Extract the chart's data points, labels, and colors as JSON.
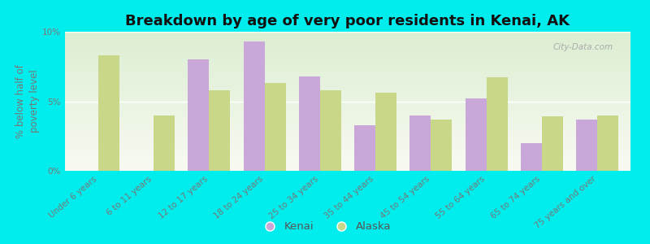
{
  "title": "Breakdown by age of very poor residents in Kenai, AK",
  "ylabel": "% below half of\npoverty level",
  "categories": [
    "Under 6 years",
    "6 to 11 years",
    "12 to 17 years",
    "18 to 24 years",
    "25 to 34 years",
    "35 to 44 years",
    "45 to 54 years",
    "55 to 64 years",
    "65 to 74 years",
    "75 years and over"
  ],
  "kenai_values": [
    0,
    0,
    8.0,
    9.3,
    6.8,
    3.3,
    4.0,
    5.2,
    2.0,
    3.7
  ],
  "alaska_values": [
    8.3,
    4.0,
    5.8,
    6.3,
    5.8,
    5.6,
    3.7,
    6.7,
    3.9,
    4.0
  ],
  "kenai_color": "#c9a8d9",
  "alaska_color": "#c8d888",
  "background_color": "#00eded",
  "ylim": [
    0,
    10
  ],
  "yticks": [
    0,
    5,
    10
  ],
  "ytick_labels": [
    "0%",
    "5%",
    "10%"
  ],
  "bar_width": 0.38,
  "title_fontsize": 13,
  "axis_label_fontsize": 8.5,
  "tick_fontsize": 7.5,
  "legend_fontsize": 9.5,
  "tick_color": "#777777",
  "watermark": "City-Data.com"
}
